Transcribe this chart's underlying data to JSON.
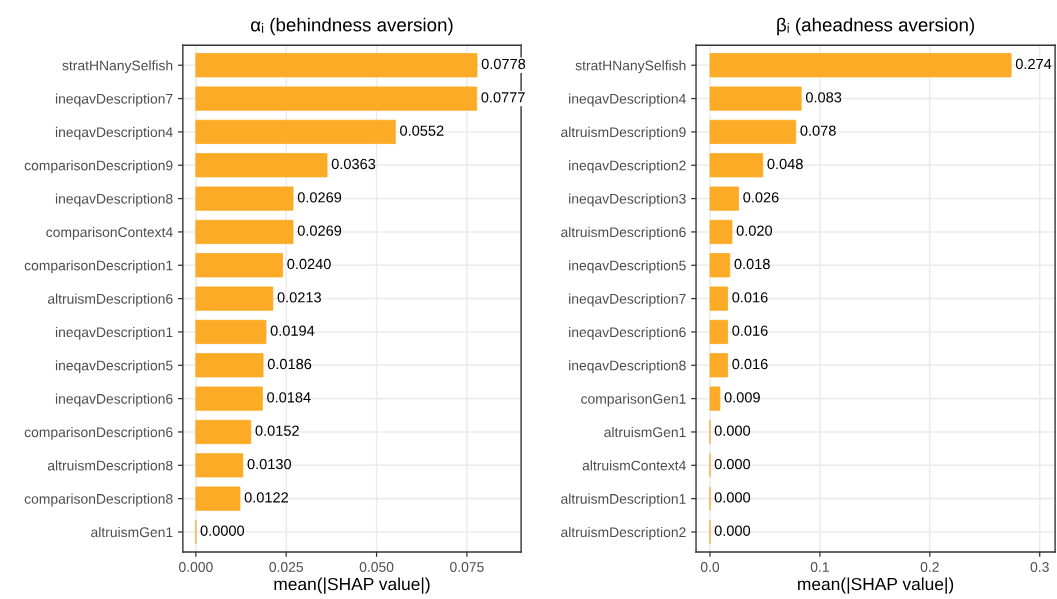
{
  "chart_data": [
    {
      "type": "bar",
      "orientation": "horizontal",
      "title": "αᵢ (behindness aversion)",
      "xlabel": "mean(|SHAP value|)",
      "categories": [
        "stratHNanySelfish",
        "ineqavDescription7",
        "ineqavDescription4",
        "comparisonDescription9",
        "ineqavDescription8",
        "comparisonContext4",
        "comparisonDescription1",
        "altruismDescription6",
        "ineqavDescription1",
        "ineqavDescription5",
        "ineqavDescription6",
        "comparisonDescription6",
        "altruismDescription8",
        "comparisonDescription8",
        "altruismGen1"
      ],
      "values": [
        0.0778,
        0.0777,
        0.0552,
        0.0363,
        0.0269,
        0.0269,
        0.024,
        0.0213,
        0.0194,
        0.0186,
        0.0184,
        0.0152,
        0.013,
        0.0122,
        0.0
      ],
      "value_labels": [
        "0.0778",
        "0.0777",
        "0.0552",
        "0.0363",
        "0.0269",
        "0.0269",
        "0.0240",
        "0.0213",
        "0.0194",
        "0.0186",
        "0.0184",
        "0.0152",
        "0.0130",
        "0.0122",
        "0.0000"
      ],
      "color": "#fbab26",
      "xlim": [
        -0.0036,
        0.09
      ],
      "xticks": [
        {
          "value": 0,
          "label": "0.000"
        },
        {
          "value": 0.025,
          "label": "0.025"
        },
        {
          "value": 0.05,
          "label": "0.050"
        },
        {
          "value": 0.075,
          "label": "0.075"
        }
      ],
      "grid": true
    },
    {
      "type": "bar",
      "orientation": "horizontal",
      "title": "βᵢ (aheadness aversion)",
      "xlabel": "mean(|SHAP value|)",
      "categories": [
        "stratHNanySelfish",
        "ineqavDescription4",
        "altruismDescription9",
        "ineqavDescription2",
        "ineqavDescription3",
        "altruismDescription6",
        "ineqavDescription5",
        "ineqavDescription7",
        "ineqavDescription6",
        "ineqavDescription8",
        "comparisonGen1",
        "altruismGen1",
        "altruismContext4",
        "altruismDescription1",
        "altruismDescription2"
      ],
      "values": [
        0.274,
        0.083,
        0.078,
        0.048,
        0.026,
        0.02,
        0.018,
        0.016,
        0.016,
        0.016,
        0.009,
        0.0,
        0.0,
        0.0,
        0.0
      ],
      "value_labels": [
        "0.274",
        "0.083",
        "0.078",
        "0.048",
        "0.026",
        "0.020",
        "0.018",
        "0.016",
        "0.016",
        "0.016",
        "0.009",
        "0.000",
        "0.000",
        "0.000",
        "0.000"
      ],
      "color": "#fbab26",
      "xlim": [
        -0.0127,
        0.314
      ],
      "xticks": [
        {
          "value": 0,
          "label": "0.0"
        },
        {
          "value": 0.1,
          "label": "0.1"
        },
        {
          "value": 0.2,
          "label": "0.2"
        },
        {
          "value": 0.3,
          "label": "0.3"
        }
      ],
      "grid": true
    }
  ]
}
